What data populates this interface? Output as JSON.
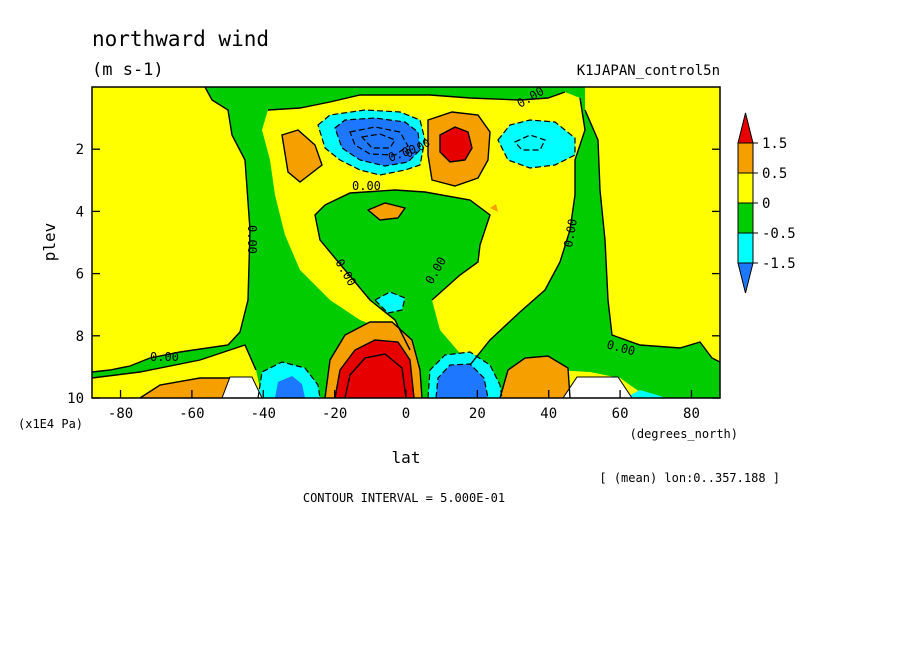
{
  "chart_data": {
    "type": "heatmap",
    "title": "northward wind",
    "units": "(m s-1)",
    "experiment": "K1JAPAN_control5n",
    "xlabel": "lat",
    "xunits": "(degrees_north)",
    "ylabel": "plev",
    "yunits": "(x1E4 Pa)",
    "xlim": [
      -88,
      88
    ],
    "ylim": [
      10,
      0
    ],
    "x_ticks": [
      -80,
      -60,
      -40,
      -20,
      0,
      20,
      40,
      60,
      80
    ],
    "x_tick_labels": [
      "-80",
      "-60",
      "-40",
      "-20",
      "0",
      "20",
      "40",
      "60",
      "80"
    ],
    "y_ticks": [
      2,
      4,
      6,
      8,
      10
    ],
    "y_tick_labels": [
      "2",
      "4",
      "6",
      "8",
      "10"
    ],
    "mean_note": "[ (mean) lon:0..357.188 ]",
    "contour_interval_text": "CONTOUR INTERVAL = 5.000E-01",
    "contour_interval": 0.5,
    "contour_labels": [
      "0.00",
      "0.00",
      "0.00",
      "0.00",
      "0.00",
      "0.00",
      "0.00",
      "0.00",
      "0.00",
      "0.00"
    ],
    "legend": {
      "placement": "right",
      "levels": [
        "1.5",
        "0.5",
        "0",
        "-0.5",
        "-1.5"
      ],
      "colors": [
        "#e60000",
        "#f5a000",
        "#ffff00",
        "#00cc00",
        "#00ffff",
        "#1e78ff"
      ]
    },
    "features": [
      {
        "kind": "positive-center",
        "lat": 12,
        "plev": 1.9,
        "value": 1.7
      },
      {
        "kind": "negative-center",
        "lat": -12,
        "plev": 1.8,
        "value": -2.5
      },
      {
        "kind": "negative-center",
        "lat": 37,
        "plev": 1.9,
        "value": -1.0
      },
      {
        "kind": "positive-center",
        "lat": -3,
        "plev": 9.6,
        "value": 3.0
      },
      {
        "kind": "negative-center",
        "lat": 12,
        "plev": 9.6,
        "value": -2.0
      },
      {
        "kind": "negative-center",
        "lat": -33,
        "plev": 9.7,
        "value": -1.5
      },
      {
        "kind": "positive-center",
        "lat": 38,
        "plev": 9.6,
        "value": 1.0
      }
    ]
  }
}
